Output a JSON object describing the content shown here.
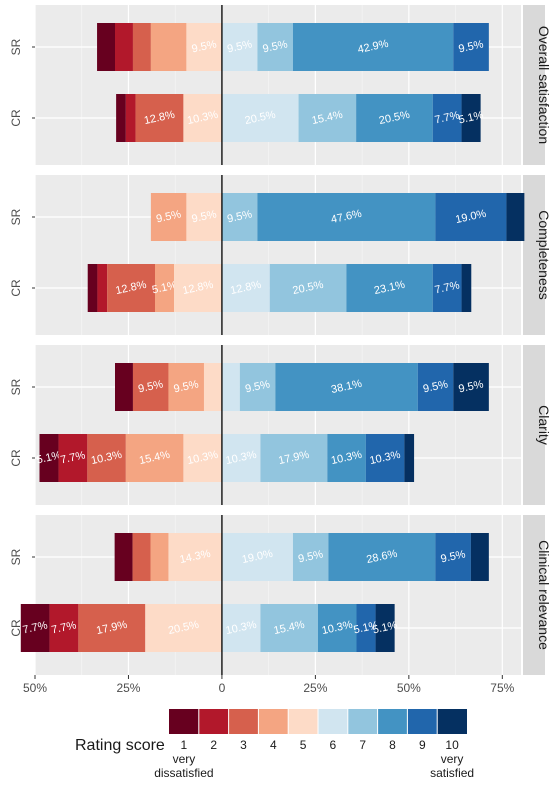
{
  "chart_data": {
    "type": "bar",
    "orientation": "horizontal",
    "stacking": "diverging",
    "x_axis": {
      "range": [
        -0.5,
        0.8
      ],
      "ticks": [
        "50%",
        "25%",
        "0",
        "25%",
        "50%",
        "75%"
      ],
      "tick_values": [
        -0.5,
        -0.25,
        0,
        0.25,
        0.5,
        0.75
      ]
    },
    "grid": true,
    "scale_levels": [
      "1",
      "2",
      "3",
      "4",
      "5",
      "6",
      "7",
      "8",
      "9",
      "10"
    ],
    "colors": [
      "#67001f",
      "#b2182b",
      "#d6604d",
      "#f4a582",
      "#fddbc7",
      "#d1e5f0",
      "#92c5de",
      "#4393c3",
      "#2166ac",
      "#053061"
    ],
    "legend": {
      "title": "Rating score",
      "placement": "bottom",
      "low_label": "very dissatisfied",
      "high_label": "very satisfied"
    },
    "panels": [
      {
        "title": "Overall satisfaction",
        "rows": [
          {
            "label": "SR",
            "values": [
              0.048,
              0.048,
              0.048,
              0.095,
              0.095,
              0.095,
              0.095,
              0.429,
              0.095,
              0.0
            ],
            "labels": [
              "",
              "",
              "",
              "",
              "9.5%",
              "9.5%",
              "9.5%",
              "42.9%",
              "9.5%",
              ""
            ]
          },
          {
            "label": "CR",
            "values": [
              0.026,
              0.026,
              0.128,
              0.0,
              0.103,
              0.205,
              0.154,
              0.205,
              0.077,
              0.051
            ],
            "labels": [
              "",
              "",
              "12.8%",
              "",
              "10.3%",
              "20.5%",
              "15.4%",
              "20.5%",
              "7.7%",
              "5.1%"
            ]
          }
        ]
      },
      {
        "title": "Completeness",
        "rows": [
          {
            "label": "SR",
            "values": [
              0.0,
              0.0,
              0.0,
              0.095,
              0.095,
              0.0,
              0.095,
              0.476,
              0.19,
              0.048
            ],
            "labels": [
              "",
              "",
              "",
              "9.5%",
              "9.5%",
              "",
              "9.5%",
              "47.6%",
              "19.0%",
              ""
            ]
          },
          {
            "label": "CR",
            "values": [
              0.026,
              0.026,
              0.128,
              0.051,
              0.128,
              0.128,
              0.205,
              0.231,
              0.077,
              0.026
            ],
            "labels": [
              "",
              "",
              "12.8%",
              "5.1%",
              "12.8%",
              "12.8%",
              "20.5%",
              "23.1%",
              "7.7%",
              ""
            ]
          }
        ]
      },
      {
        "title": "Clarity",
        "rows": [
          {
            "label": "SR",
            "values": [
              0.048,
              0.0,
              0.095,
              0.095,
              0.048,
              0.048,
              0.095,
              0.381,
              0.095,
              0.095
            ],
            "labels": [
              "",
              "",
              "9.5%",
              "9.5%",
              "",
              "",
              "9.5%",
              "38.1%",
              "9.5%",
              "9.5%"
            ]
          },
          {
            "label": "CR",
            "values": [
              0.051,
              0.077,
              0.103,
              0.154,
              0.103,
              0.103,
              0.179,
              0.103,
              0.103,
              0.026
            ],
            "labels": [
              "5.1%",
              "7.7%",
              "10.3%",
              "15.4%",
              "10.3%",
              "10.3%",
              "17.9%",
              "10.3%",
              "10.3%",
              ""
            ]
          }
        ]
      },
      {
        "title": "Clinical relevance",
        "rows": [
          {
            "label": "SR",
            "values": [
              0.048,
              0.0,
              0.048,
              0.048,
              0.143,
              0.19,
              0.095,
              0.286,
              0.095,
              0.048
            ],
            "labels": [
              "",
              "",
              "",
              "",
              "14.3%",
              "19.0%",
              "9.5%",
              "28.6%",
              "9.5%",
              ""
            ]
          },
          {
            "label": "CR",
            "values": [
              0.077,
              0.077,
              0.179,
              0.0,
              0.205,
              0.103,
              0.154,
              0.103,
              0.051,
              0.051
            ],
            "labels": [
              "7.7%",
              "7.7%",
              "17.9%",
              "",
              "20.5%",
              "10.3%",
              "15.4%",
              "10.3%",
              "5.1%",
              "5.1%"
            ]
          }
        ]
      }
    ]
  }
}
